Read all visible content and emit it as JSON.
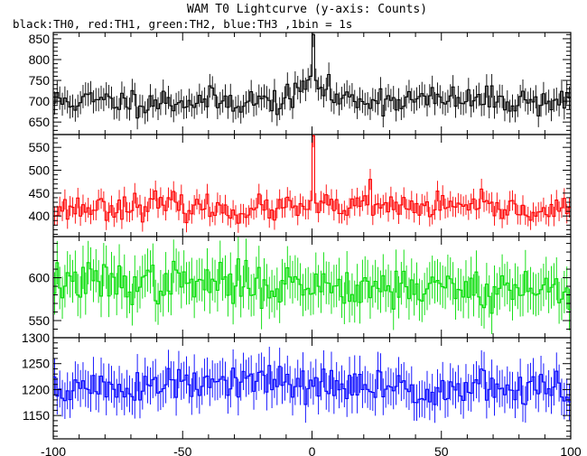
{
  "chart_data": {
    "type": "line",
    "title": "WAM T0 Lightcurve (y-axis: Counts)",
    "subtitle": "black:TH0, red:TH1, green:TH2, blue:TH3 ,1bin = 1s",
    "xlim": [
      -100,
      100
    ],
    "x_ticks": [
      -100,
      -50,
      0,
      50,
      100
    ],
    "x_tick_labels": [
      "-100",
      "-50",
      "0",
      "50",
      "100"
    ],
    "x_step": 1,
    "panels": [
      {
        "name": "TH0",
        "color": "#000000",
        "ylim": [
          620,
          865
        ],
        "y_ticks": [
          650,
          700,
          750,
          800,
          850
        ],
        "y_tick_labels": [
          "650",
          "700",
          "750",
          "800",
          "850"
        ],
        "baseline": [
          [
            -100,
            700
          ],
          [
            -10,
            700
          ],
          [
            -1,
            745
          ],
          [
            1,
            745
          ],
          [
            10,
            705
          ],
          [
            100,
            700
          ]
        ],
        "peaks": [
          {
            "x": 0,
            "y": 860
          },
          {
            "x": -1,
            "y": 760
          },
          {
            "x": 1,
            "y": 750
          }
        ],
        "noise": 20,
        "seed": 11
      },
      {
        "name": "TH1",
        "color": "#ff0000",
        "ylim": [
          355,
          578
        ],
        "y_ticks": [
          400,
          450,
          500,
          550
        ],
        "y_tick_labels": [
          "400",
          "450",
          "500",
          "550"
        ],
        "baseline": [
          [
            -100,
            415
          ],
          [
            -60,
            425
          ],
          [
            -30,
            412
          ],
          [
            0,
            418
          ],
          [
            50,
            420
          ],
          [
            100,
            410
          ]
        ],
        "peaks": [
          {
            "x": 0,
            "y": 575
          },
          {
            "x": 22,
            "y": 480
          }
        ],
        "noise": 17,
        "seed": 23
      },
      {
        "name": "TH2",
        "color": "#00dd00",
        "ylim": [
          530,
          648
        ],
        "y_ticks": [
          550,
          600
        ],
        "y_tick_labels": [
          "550",
          "600"
        ],
        "baseline": [
          [
            -100,
            595
          ],
          [
            0,
            592
          ],
          [
            100,
            585
          ]
        ],
        "peaks": [],
        "noise": 15,
        "seed": 37
      },
      {
        "name": "TH3",
        "color": "#0000ff",
        "ylim": [
          1105,
          1300
        ],
        "y_ticks": [
          1150,
          1200,
          1250,
          1300
        ],
        "y_tick_labels": [
          "1150",
          "1200",
          "1250",
          "1300"
        ],
        "baseline": [
          [
            -100,
            1200
          ],
          [
            -10,
            1215
          ],
          [
            0,
            1205
          ],
          [
            100,
            1200
          ]
        ],
        "peaks": [],
        "noise": 22,
        "seed": 51
      }
    ]
  }
}
